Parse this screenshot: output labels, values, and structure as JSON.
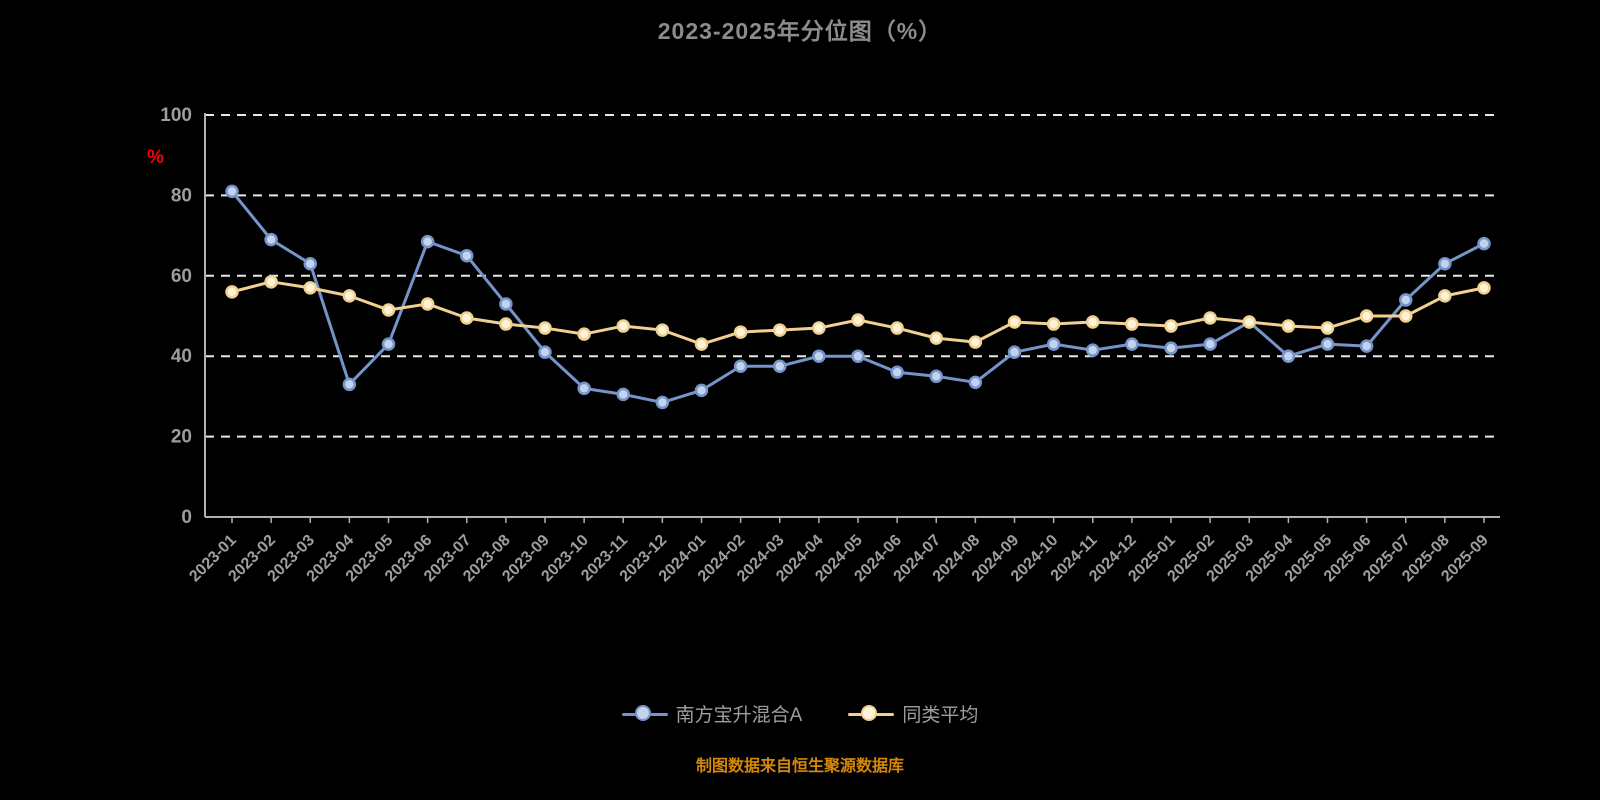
{
  "chart": {
    "title": "2023-2025年分位图（%）",
    "y_unit_label": "%",
    "source_note": "制图数据来自恒生聚源数据库"
  },
  "colors": {
    "background": "#000000",
    "title_text": "#8c8c8c",
    "axis_line": "#b0b0b0",
    "grid_line": "#e8e8e8",
    "tick_text": "#9e9e9e",
    "unit_label": "#ff0000",
    "source_text": "#d48806",
    "series_fund": "#7494ca",
    "series_avg": "#f0d191"
  },
  "chart_data": {
    "type": "line",
    "title": "2023-2025年分位图（%）",
    "xlabel": "",
    "ylabel": "%",
    "ylim": [
      0,
      100
    ],
    "yticks": [
      0,
      20,
      40,
      60,
      80,
      100
    ],
    "grid": "dashed-horizontal",
    "legend_position": "bottom",
    "x": [
      "2023-01",
      "2023-02",
      "2023-03",
      "2023-04",
      "2023-05",
      "2023-06",
      "2023-07",
      "2023-08",
      "2023-09",
      "2023-10",
      "2023-11",
      "2023-12",
      "2024-01",
      "2024-02",
      "2024-03",
      "2024-04",
      "2024-05",
      "2024-06",
      "2024-07",
      "2024-08",
      "2024-09",
      "2024-10",
      "2024-11",
      "2024-12",
      "2025-01",
      "2025-02",
      "2025-03",
      "2025-04",
      "2025-05",
      "2025-06",
      "2025-07",
      "2025-08",
      "2025-09"
    ],
    "series": [
      {
        "name": "南方宝升混合A",
        "color": "#7494ca",
        "marker_fill": "#c3d3ec",
        "values": [
          81,
          69,
          63,
          33,
          43,
          68.5,
          65,
          53,
          41,
          32,
          30.5,
          28.5,
          31.5,
          37.5,
          37.5,
          40,
          40,
          36,
          35,
          33.5,
          41,
          43,
          41.5,
          43,
          42,
          43,
          48.5,
          40,
          43,
          42.5,
          54,
          63,
          68
        ]
      },
      {
        "name": "同类平均",
        "color": "#f0d191",
        "marker_fill": "#fdf3d8",
        "values": [
          56,
          58.5,
          57,
          55,
          51.5,
          53,
          49.5,
          48,
          47,
          45.5,
          47.5,
          46.5,
          43,
          46,
          46.5,
          47,
          49,
          47,
          44.5,
          43.5,
          48.5,
          48,
          48.5,
          48,
          47.5,
          49.5,
          48.5,
          47.5,
          47,
          50,
          50,
          55,
          57
        ]
      }
    ]
  }
}
